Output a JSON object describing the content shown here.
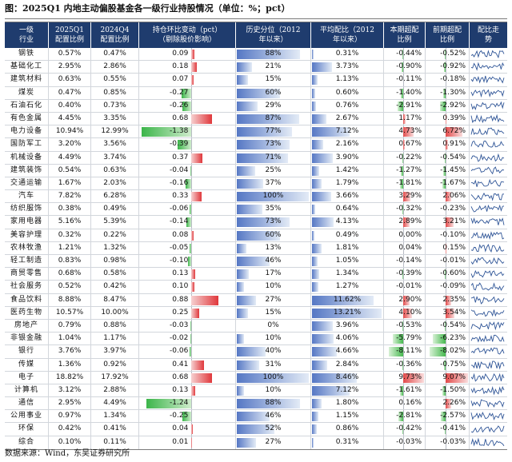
{
  "title": "图：2025Q1 内地主动偏股基金各一级行业持股情况（单位：%；pct）",
  "source": "数据来源：Wind，东吴证券研究所",
  "colors": {
    "header_bg": "#1f3c6e",
    "positive": "#e0383c",
    "negative": "#3cb54a",
    "percentile": "#5577c4",
    "spark": "#2f5597"
  },
  "headers": {
    "industry": [
      "一级",
      "行业"
    ],
    "q1": [
      "2025Q1",
      "配置比例"
    ],
    "q4": [
      "2024Q4",
      "配置比例"
    ],
    "change": [
      "持仓环比变动（pct）",
      "（剔除股价影响）"
    ],
    "percentile": [
      "历史分位（2012",
      "年以来）"
    ],
    "avg": [
      "平均配比（2012",
      "年以来）"
    ],
    "excess_cur": [
      "本期超配",
      "比例"
    ],
    "excess_prev": [
      "前期超配",
      "比例"
    ],
    "trend": [
      "配比走",
      "势"
    ]
  },
  "rows": [
    {
      "name": "钢铁",
      "q1": "0.57%",
      "q4": "0.47%",
      "chg": "0.09",
      "pct": "88%",
      "avg": "0.31%",
      "ex": "-0.44%",
      "exp": "-0.52%"
    },
    {
      "name": "基础化工",
      "q1": "2.95%",
      "q4": "2.86%",
      "chg": "0.18",
      "pct": "21%",
      "avg": "3.73%",
      "ex": "-0.90%",
      "exp": "-0.92%"
    },
    {
      "name": "建筑材料",
      "q1": "0.63%",
      "q4": "0.55%",
      "chg": "0.07",
      "pct": "15%",
      "avg": "1.13%",
      "ex": "-0.11%",
      "exp": "-0.18%"
    },
    {
      "name": "煤炭",
      "q1": "0.47%",
      "q4": "0.85%",
      "chg": "-0.27",
      "pct": "60%",
      "avg": "0.60%",
      "ex": "-1.40%",
      "exp": "-1.30%"
    },
    {
      "name": "石油石化",
      "q1": "0.40%",
      "q4": "0.73%",
      "chg": "-0.26",
      "pct": "29%",
      "avg": "0.76%",
      "ex": "-2.91%",
      "exp": "-2.92%"
    },
    {
      "name": "有色金属",
      "q1": "4.45%",
      "q4": "3.35%",
      "chg": "0.68",
      "pct": "87%",
      "avg": "2.67%",
      "ex": "1.17%",
      "exp": "0.39%"
    },
    {
      "name": "电力设备",
      "q1": "10.94%",
      "q4": "12.99%",
      "chg": "-1.38",
      "pct": "77%",
      "avg": "7.12%",
      "ex": "4.73%",
      "exp": "6.72%"
    },
    {
      "name": "国防军工",
      "q1": "3.20%",
      "q4": "3.56%",
      "chg": "-0.39",
      "pct": "73%",
      "avg": "2.16%",
      "ex": "0.67%",
      "exp": "0.91%"
    },
    {
      "name": "机械设备",
      "q1": "4.49%",
      "q4": "3.74%",
      "chg": "0.37",
      "pct": "71%",
      "avg": "3.90%",
      "ex": "-0.22%",
      "exp": "-0.54%"
    },
    {
      "name": "建筑装饰",
      "q1": "0.54%",
      "q4": "0.63%",
      "chg": "-0.04",
      "pct": "25%",
      "avg": "1.42%",
      "ex": "-1.27%",
      "exp": "-1.45%"
    },
    {
      "name": "交通运输",
      "q1": "1.67%",
      "q4": "2.03%",
      "chg": "-0.16",
      "pct": "37%",
      "avg": "1.79%",
      "ex": "-1.81%",
      "exp": "-1.67%"
    },
    {
      "name": "汽车",
      "q1": "7.82%",
      "q4": "6.28%",
      "chg": "0.33",
      "pct": "100%",
      "avg": "3.66%",
      "ex": "3.29%",
      "exp": "2.06%"
    },
    {
      "name": "纺织服饰",
      "q1": "0.38%",
      "q4": "0.49%",
      "chg": "-0.06",
      "pct": "35%",
      "avg": "0.64%",
      "ex": "-0.32%",
      "exp": "-0.23%"
    },
    {
      "name": "家用电器",
      "q1": "5.16%",
      "q4": "5.39%",
      "chg": "-0.14",
      "pct": "73%",
      "avg": "4.13%",
      "ex": "2.89%",
      "exp": "3.21%"
    },
    {
      "name": "美容护理",
      "q1": "0.32%",
      "q4": "0.22%",
      "chg": "0.08",
      "pct": "60%",
      "avg": "0.49%",
      "ex": "0.00%",
      "exp": "-0.10%"
    },
    {
      "name": "农林牧渔",
      "q1": "1.21%",
      "q4": "1.32%",
      "chg": "-0.05",
      "pct": "13%",
      "avg": "1.81%",
      "ex": "0.04%",
      "exp": "0.15%"
    },
    {
      "name": "轻工制造",
      "q1": "0.83%",
      "q4": "0.98%",
      "chg": "-0.10",
      "pct": "46%",
      "avg": "1.05%",
      "ex": "-0.14%",
      "exp": "-0.01%"
    },
    {
      "name": "商贸零售",
      "q1": "0.68%",
      "q4": "0.58%",
      "chg": "0.13",
      "pct": "17%",
      "avg": "1.34%",
      "ex": "-0.39%",
      "exp": "-0.60%"
    },
    {
      "name": "社会服务",
      "q1": "0.52%",
      "q4": "0.42%",
      "chg": "0.10",
      "pct": "10%",
      "avg": "1.27%",
      "ex": "-0.01%",
      "exp": "-0.09%"
    },
    {
      "name": "食品饮料",
      "q1": "8.88%",
      "q4": "8.47%",
      "chg": "0.88",
      "pct": "27%",
      "avg": "11.62%",
      "ex": "2.90%",
      "exp": "2.35%"
    },
    {
      "name": "医药生物",
      "q1": "10.57%",
      "q4": "10.00%",
      "chg": "0.25",
      "pct": "15%",
      "avg": "13.21%",
      "ex": "4.10%",
      "exp": "3.54%"
    },
    {
      "name": "房地产",
      "q1": "0.79%",
      "q4": "0.88%",
      "chg": "-0.03",
      "pct": "0%",
      "avg": "3.96%",
      "ex": "-0.53%",
      "exp": "-0.54%"
    },
    {
      "name": "非银金融",
      "q1": "1.04%",
      "q4": "1.17%",
      "chg": "-0.02",
      "pct": "10%",
      "avg": "4.06%",
      "ex": "-5.79%",
      "exp": "-6.23%"
    },
    {
      "name": "银行",
      "q1": "3.76%",
      "q4": "3.97%",
      "chg": "-0.06",
      "pct": "40%",
      "avg": "4.66%",
      "ex": "-8.11%",
      "exp": "-8.02%"
    },
    {
      "name": "传媒",
      "q1": "1.36%",
      "q4": "0.92%",
      "chg": "0.41",
      "pct": "31%",
      "avg": "2.84%",
      "ex": "-0.36%",
      "exp": "-0.75%"
    },
    {
      "name": "电子",
      "q1": "18.82%",
      "q4": "17.92%",
      "chg": "0.68",
      "pct": "100%",
      "avg": "8.46%",
      "ex": "9.73%",
      "exp": "9.07%"
    },
    {
      "name": "计算机",
      "q1": "3.12%",
      "q4": "2.88%",
      "chg": "0.13",
      "pct": "10%",
      "avg": "7.12%",
      "ex": "-1.61%",
      "exp": "-1.50%"
    },
    {
      "name": "通信",
      "q1": "2.95%",
      "q4": "4.49%",
      "chg": "-1.24",
      "pct": "88%",
      "avg": "1.80%",
      "ex": "0.16%",
      "exp": "2.26%"
    },
    {
      "name": "公用事业",
      "q1": "0.97%",
      "q4": "1.34%",
      "chg": "-0.25",
      "pct": "46%",
      "avg": "1.15%",
      "ex": "-2.81%",
      "exp": "-2.57%"
    },
    {
      "name": "环保",
      "q1": "0.42%",
      "q4": "0.41%",
      "chg": "0.04",
      "pct": "52%",
      "avg": "0.86%",
      "ex": "-0.42%",
      "exp": "-0.41%"
    },
    {
      "name": "综合",
      "q1": "0.10%",
      "q4": "0.11%",
      "chg": "0.01",
      "pct": "27%",
      "avg": "0.31%",
      "ex": "-0.03%",
      "exp": "-0.03%"
    }
  ]
}
